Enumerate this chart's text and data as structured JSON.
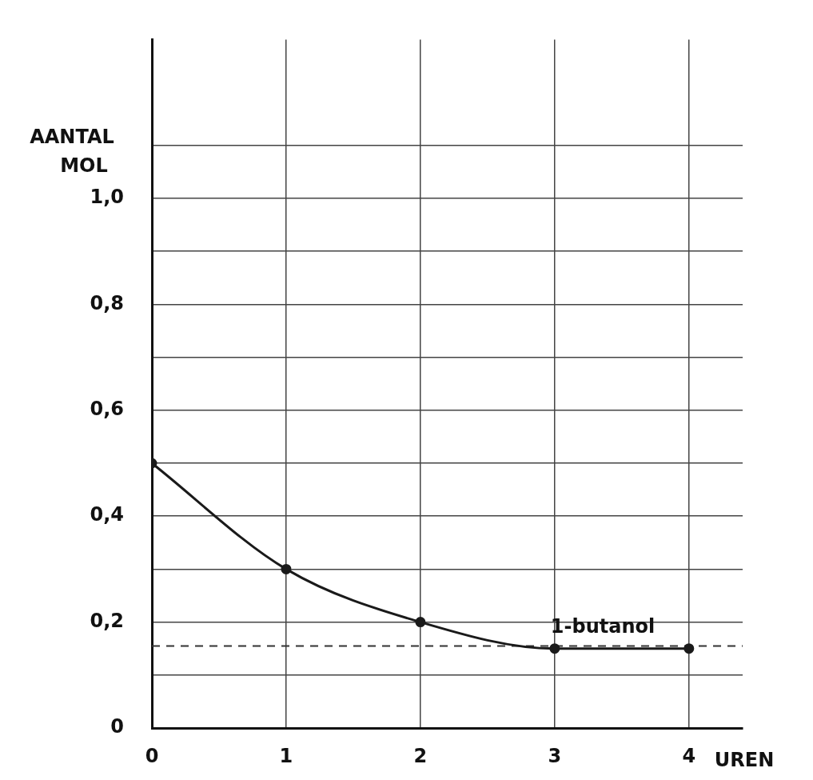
{
  "chart_data": {
    "type": "line",
    "xlabel": "UREN",
    "ylabel": "AANTAL MOL",
    "x": [
      0,
      1,
      2,
      3,
      4
    ],
    "series": [
      {
        "color": "#1a1a1a",
        "values": [
          0.5,
          0.3,
          0.2,
          0.15,
          0.15
        ]
      }
    ],
    "xlim": [
      0,
      4.4
    ],
    "xticks": [
      0,
      1,
      2,
      3,
      4
    ],
    "ylim": [
      0,
      1.3
    ],
    "yticks": [
      0,
      {
        "value": 0.1,
        "label": null
      },
      {
        "value": 0.2,
        "label": "0,2"
      },
      {
        "value": 0.3,
        "label": null
      },
      {
        "value": 0.4,
        "label": "0,4"
      },
      {
        "value": 0.5,
        "label": null
      },
      {
        "value": 0.6,
        "label": "0,6"
      },
      {
        "value": 0.7,
        "label": null
      },
      {
        "value": 0.8,
        "label": "0,8"
      },
      {
        "value": 0.9,
        "label": null
      },
      {
        "value": 1.0,
        "label": "1,0"
      },
      {
        "value": 1.1,
        "label": null
      }
    ],
    "ref_lines": [
      {
        "axis": "y",
        "value": 0.155,
        "line_style": "dashed",
        "color": "#333333"
      }
    ],
    "annotations": [
      {
        "text": "1-butanol",
        "x": 3,
        "y": 0.15
      }
    ],
    "grid": true,
    "legend": false,
    "marker": "circle",
    "line_style": "solid"
  }
}
